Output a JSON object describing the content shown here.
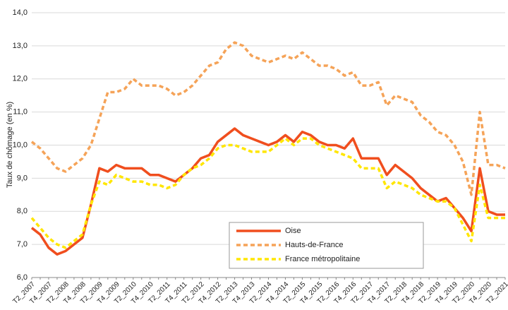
{
  "chart_data": {
    "type": "line",
    "y_label": "Taux de chômage (en %)",
    "categories": [
      "T2_2007",
      null,
      "T4_2007",
      null,
      "T2_2008",
      null,
      "T4_2008",
      null,
      "T2_2009",
      null,
      "T4_2009",
      null,
      "T2_2010",
      null,
      "T4_2010",
      null,
      "T2_2011",
      null,
      "T4_2011",
      null,
      "T2_2012",
      null,
      "T4_2012",
      null,
      "T2_2013",
      null,
      "T4_2013",
      null,
      "T2_2014",
      null,
      "T4_2014",
      null,
      "T2_2015",
      null,
      "T4_2015",
      null,
      "T2_2016",
      null,
      "T4_2016",
      null,
      "T2_2017",
      null,
      "T4_2017",
      null,
      "T2_2018",
      null,
      "T4_2018",
      null,
      "T2_2019",
      null,
      "T4_2019",
      null,
      "T2_2020",
      null,
      "T4_2020",
      null,
      "T2_2021"
    ],
    "series": [
      {
        "name": "Oise",
        "color": "#f04e1e",
        "dash": "solid",
        "values": [
          7.5,
          7.3,
          6.9,
          6.7,
          6.8,
          7.0,
          7.2,
          8.2,
          9.3,
          9.2,
          9.4,
          9.3,
          9.3,
          9.3,
          9.1,
          9.1,
          9.0,
          8.9,
          9.1,
          9.3,
          9.6,
          9.7,
          10.1,
          10.3,
          10.5,
          10.3,
          10.2,
          10.1,
          10.0,
          10.1,
          10.3,
          10.1,
          10.4,
          10.3,
          10.1,
          10.0,
          10.0,
          9.9,
          10.2,
          9.6,
          9.6,
          9.6,
          9.1,
          9.4,
          9.2,
          9.0,
          8.7,
          8.5,
          8.3,
          8.4,
          8.1,
          7.8,
          7.4,
          9.3,
          8.0,
          7.9,
          7.9
        ]
      },
      {
        "name": "Hauts-de-France",
        "color": "#f5a358",
        "dash": "dashed",
        "values": [
          10.1,
          9.9,
          9.6,
          9.3,
          9.2,
          9.4,
          9.6,
          10.0,
          10.8,
          11.6,
          11.6,
          11.7,
          12.0,
          11.8,
          11.8,
          11.8,
          11.7,
          11.5,
          11.6,
          11.8,
          12.1,
          12.4,
          12.5,
          12.9,
          13.1,
          13.0,
          12.7,
          12.6,
          12.5,
          12.6,
          12.7,
          12.6,
          12.8,
          12.6,
          12.4,
          12.4,
          12.3,
          12.1,
          12.2,
          11.8,
          11.8,
          11.9,
          11.2,
          11.5,
          11.4,
          11.3,
          10.9,
          10.7,
          10.4,
          10.3,
          10.0,
          9.5,
          8.5,
          11.0,
          9.4,
          9.4,
          9.3
        ]
      },
      {
        "name": "France métropolitaine",
        "color": "#ffe600",
        "dash": "dashed",
        "values": [
          7.8,
          7.5,
          7.2,
          7.0,
          6.9,
          7.1,
          7.3,
          8.2,
          8.9,
          8.8,
          9.1,
          9.0,
          8.9,
          8.9,
          8.8,
          8.8,
          8.7,
          8.8,
          9.1,
          9.3,
          9.4,
          9.6,
          9.9,
          10.0,
          10.0,
          9.9,
          9.8,
          9.8,
          9.8,
          10.0,
          10.2,
          10.0,
          10.2,
          10.2,
          10.0,
          9.9,
          9.8,
          9.7,
          9.6,
          9.3,
          9.3,
          9.3,
          8.7,
          8.9,
          8.8,
          8.7,
          8.5,
          8.4,
          8.3,
          8.3,
          8.1,
          7.6,
          7.1,
          8.8,
          7.8,
          7.8,
          7.8
        ]
      }
    ],
    "ylim": [
      6,
      14
    ],
    "yticks": [
      {
        "value": 6,
        "label": "6,0"
      },
      {
        "value": 7,
        "label": "7,0"
      },
      {
        "value": 8,
        "label": "8,0"
      },
      {
        "value": 9,
        "label": "9,0"
      },
      {
        "value": 10,
        "label": "10,0"
      },
      {
        "value": 11,
        "label": "11,0"
      },
      {
        "value": 12,
        "label": "12,0"
      },
      {
        "value": 13,
        "label": "13,0"
      },
      {
        "value": 14,
        "label": "14,0"
      }
    ],
    "grid": true
  }
}
